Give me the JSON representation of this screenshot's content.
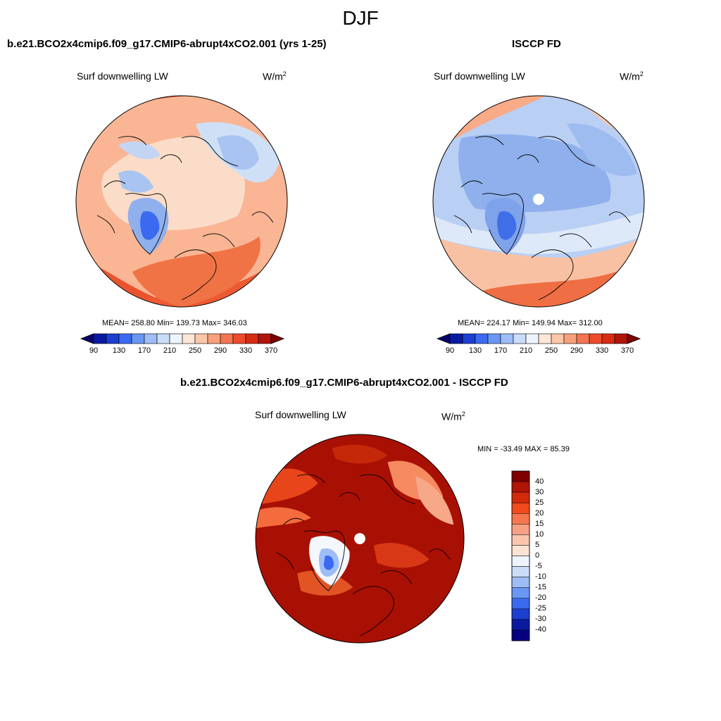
{
  "figure": {
    "title": "DJF",
    "colors": {
      "deep_blue": "#08306b",
      "blue": "#2166ac",
      "light_blue": "#9ecae1",
      "pale": "#fddbc7",
      "orange": "#f4a582",
      "red": "#d6604d",
      "dark_red": "#8b0a0a"
    }
  },
  "panels": [
    {
      "id": "model",
      "case_title": "b.e21.BCO2x4cmip6.f09_g17.CMIP6-abrupt4xCO2.001 (yrs 1-25)",
      "variable_label": "Surf downwelling LW",
      "unit": "W/m",
      "unit_exponent": "2",
      "stats_text": "MEAN= 258.80  Min= 139.73  Max= 346.03",
      "mean": 258.8,
      "min": 139.73,
      "max": 346.03,
      "colorbar_labels": [
        "90",
        "130",
        "170",
        "210",
        "250",
        "290",
        "330",
        "370"
      ]
    },
    {
      "id": "obs",
      "case_title": "ISCCP FD",
      "variable_label": "Surf downwelling LW",
      "unit": "W/m",
      "unit_exponent": "2",
      "stats_text": "MEAN= 224.17  Min= 149.94  Max= 312.00",
      "mean": 224.17,
      "min": 149.94,
      "max": 312.0,
      "colorbar_labels": [
        "90",
        "130",
        "170",
        "210",
        "250",
        "290",
        "330",
        "370"
      ]
    },
    {
      "id": "diff",
      "case_title": "b.e21.BCO2x4cmip6.f09_g17.CMIP6-abrupt4xCO2.001 - ISCCP FD",
      "variable_label": "Surf downwelling LW",
      "unit": "W/m",
      "unit_exponent": "2",
      "stats_text": "MIN = -33.49 MAX =  85.39",
      "min": -33.49,
      "max": 85.39,
      "colorbar_labels": [
        "40",
        "30",
        "25",
        "20",
        "15",
        "10",
        "5",
        "0",
        "-5",
        "-10",
        "-15",
        "-20",
        "-25",
        "-30",
        "-40"
      ]
    }
  ],
  "colorbar_palette": {
    "abs": [
      "#08006b",
      "#0a1aa0",
      "#1c3fd0",
      "#3b6af0",
      "#6a96f4",
      "#9ebdf6",
      "#c9dcf8",
      "#eef4fb",
      "#fde6d6",
      "#fbc7a9",
      "#f8a07c",
      "#f57451",
      "#ee4b2b",
      "#d72c12",
      "#b0140a",
      "#7d0303"
    ],
    "diff": [
      "#800000",
      "#b01505",
      "#d42a0c",
      "#f04a1d",
      "#f5774f",
      "#f7a184",
      "#f9c6ad",
      "#fbe3d4",
      "#eef4fb",
      "#c9dcf8",
      "#9ebdf6",
      "#6a96f4",
      "#3b6af0",
      "#1c3fd0",
      "#0a1aa0",
      "#060080"
    ]
  }
}
